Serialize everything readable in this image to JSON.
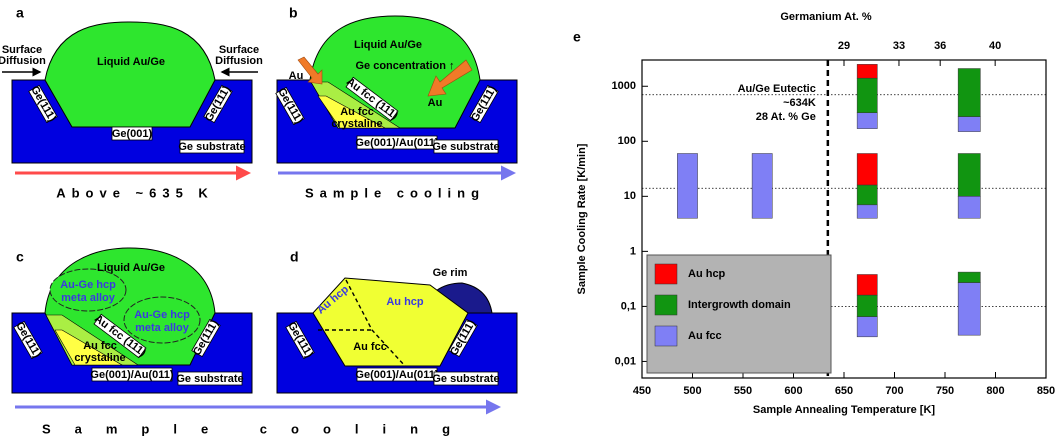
{
  "panels": {
    "a": {
      "label": "a",
      "liquid": "Liquid Au/Ge",
      "left_note": [
        "Surface",
        "Diffusion"
      ],
      "right_note": [
        "Surface",
        "Diffusion"
      ],
      "wall_left": "Ge(111)",
      "wall_right": "Ge(111)",
      "pit_bottom": "Ge(001)",
      "substrate": "Ge substrate",
      "caption": "Above ~635 K"
    },
    "b": {
      "label": "b",
      "liquid": "Liquid Au/Ge",
      "concentration": "Ge concentration ↑",
      "au_left": "Au",
      "au_right": "Au",
      "wall_left": "Ge(111)",
      "wall_right": "Ge(111)",
      "layer": "Au fcc (111)",
      "crystal": [
        "Au fcc",
        "crystaline"
      ],
      "pit_bottom": "Ge(001)/Au(011)",
      "substrate": "Ge substrate",
      "caption": "Sample cooling"
    },
    "c": {
      "label": "c",
      "liquid": "Liquid Au/Ge",
      "cloud_left": [
        "Au-Ge hcp",
        "meta alloy"
      ],
      "cloud_right": [
        "Au-Ge hcp",
        "meta alloy"
      ],
      "wall_left": "Ge(111)",
      "wall_right": "Ge(111)",
      "layer": "Au fcc (111)",
      "crystal": [
        "Au fcc",
        "crystaline"
      ],
      "pit_bottom": "Ge(001)/Au(011)",
      "substrate": "Ge substrate"
    },
    "d": {
      "label": "d",
      "rim": "Ge rim",
      "hcp_left": "Au hcp",
      "hcp_right": "Au hcp",
      "fcc": "Au fcc",
      "wall_left": "Ge(111)",
      "wall_right": "Ge(111)",
      "pit_bottom": "Ge(001)/Au(011)",
      "substrate": "Ge substrate"
    },
    "cd_caption": "Sample cooling"
  },
  "chart_data": {
    "type": "range",
    "label": "e",
    "x_label": "Sample Annealing Temperature [K]",
    "y_label": "Sample Cooling Rate [K/min]",
    "x2_label": "Germanium At. %",
    "xlim": [
      450,
      850
    ],
    "xticks": [
      450,
      500,
      550,
      600,
      650,
      700,
      750,
      800,
      850
    ],
    "ylim": [
      0.005,
      3000
    ],
    "yscale": "log",
    "yticks": [
      {
        "value": 0.01,
        "label": "0,01"
      },
      {
        "value": 0.1,
        "label": "0,1"
      },
      1,
      10,
      100,
      1000
    ],
    "x2lim": [
      14.3,
      43.7
    ],
    "x2ticks": [
      29,
      33,
      36,
      40
    ],
    "eutectic_x": 634,
    "reference_lines_y": [
      700,
      14,
      0.1
    ],
    "annotation": [
      "Au/Ge Eutectic",
      "~634K",
      "28 At. % Ge"
    ],
    "legend": "lower left",
    "series": [
      {
        "name": "Au hcp",
        "color": "#ff0000",
        "rects": [
          [
            663,
            683,
            1400,
            2500
          ],
          [
            663,
            683,
            16,
            60
          ],
          [
            663,
            683,
            0.16,
            0.38
          ]
        ]
      },
      {
        "name": "Intergrowth domain",
        "color": "#119511",
        "rects": [
          [
            663,
            683,
            330,
            1400
          ],
          [
            663,
            683,
            7,
            16
          ],
          [
            663,
            683,
            0.065,
            0.16
          ],
          [
            763,
            785,
            280,
            2100
          ],
          [
            763,
            785,
            10,
            60
          ],
          [
            763,
            785,
            0.27,
            0.42
          ]
        ]
      },
      {
        "name": "Au fcc",
        "color": "#7f7ff5",
        "rects": [
          [
            485,
            505,
            4,
            60
          ],
          [
            559,
            579,
            4,
            60
          ],
          [
            663,
            683,
            170,
            330
          ],
          [
            663,
            683,
            4,
            7
          ],
          [
            663,
            683,
            0.028,
            0.065
          ],
          [
            763,
            785,
            150,
            280
          ],
          [
            763,
            785,
            4,
            10
          ],
          [
            763,
            785,
            0.03,
            0.27
          ]
        ]
      }
    ]
  }
}
